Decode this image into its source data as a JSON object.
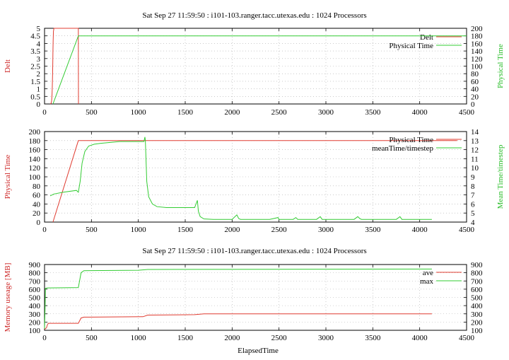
{
  "chart_data": [
    {
      "type": "line",
      "title": "Sat Sep 27 11:59:50 : i101-103.ranger.tacc.utexas.edu : 1024 Processors",
      "xlabel": "",
      "ylabel": "Delt",
      "y2label": "Physical Time",
      "xlim": [
        0,
        4500
      ],
      "ylim": [
        0,
        5
      ],
      "y2lim": [
        0,
        200
      ],
      "xticks": [
        0,
        500,
        1000,
        1500,
        2000,
        2500,
        3000,
        3500,
        4000,
        4500
      ],
      "yticks": [
        0,
        0.5,
        1,
        1.5,
        2,
        2.5,
        3,
        3.5,
        4,
        4.5,
        5
      ],
      "y2ticks": [
        0,
        20,
        40,
        60,
        80,
        100,
        120,
        140,
        160,
        180,
        200
      ],
      "grid": true,
      "legend_position": "top-right",
      "series": [
        {
          "name": "Delt",
          "axis": "left",
          "color": "#e03c31",
          "x": [
            60,
            70,
            75,
            80,
            83,
            86,
            88,
            90,
            92,
            95,
            100,
            360,
            361,
            362
          ],
          "y": [
            0.0,
            0.05,
            0.2,
            0.6,
            1.2,
            2.0,
            2.8,
            3.5,
            4.2,
            4.8,
            5.0,
            5.0,
            2.0,
            0.0
          ]
        },
        {
          "name": "Physical Time",
          "axis": "right",
          "color": "#33cc33",
          "x": [
            90,
            360,
            4500
          ],
          "y": [
            0,
            180,
            180
          ]
        }
      ]
    },
    {
      "type": "line",
      "title": "",
      "xlabel": "",
      "ylabel": "Physical Time",
      "y2label": "Mean Time/timestep",
      "xlim": [
        0,
        4500
      ],
      "ylim": [
        0,
        200
      ],
      "y2lim": [
        4,
        14
      ],
      "xticks": [
        0,
        500,
        1000,
        1500,
        2000,
        2500,
        3000,
        3500,
        4000,
        4500
      ],
      "yticks": [
        0,
        20,
        40,
        60,
        80,
        100,
        120,
        140,
        160,
        180,
        200
      ],
      "y2ticks": [
        4,
        5,
        6,
        7,
        8,
        9,
        10,
        11,
        12,
        13,
        14
      ],
      "grid": true,
      "legend_position": "top-right",
      "series": [
        {
          "name": "Physical Time",
          "axis": "left",
          "color": "#e03c31",
          "x": [
            90,
            360,
            4400
          ],
          "y": [
            0,
            180,
            180
          ]
        },
        {
          "name": "meanTime/timestep",
          "axis": "right",
          "color": "#33cc33",
          "x": [
            60,
            100,
            200,
            340,
            360,
            380,
            400,
            430,
            470,
            530,
            600,
            700,
            800,
            900,
            1000,
            1060,
            1070,
            1075,
            1080,
            1090,
            1110,
            1150,
            1200,
            1300,
            1400,
            1500,
            1600,
            1630,
            1640,
            1660,
            1700,
            1800,
            2000,
            2050,
            2070,
            2090,
            2200,
            2400,
            2490,
            2500,
            2520,
            2650,
            2680,
            2700,
            2900,
            2940,
            2960,
            3100,
            3300,
            3340,
            3360,
            3380,
            3500,
            3750,
            3790,
            3810,
            4000,
            4130
          ],
          "y": [
            6.9,
            7.1,
            7.3,
            7.5,
            7.3,
            8.5,
            10.5,
            11.8,
            12.4,
            12.6,
            12.7,
            12.8,
            12.9,
            12.9,
            12.9,
            12.9,
            13.4,
            13.0,
            11.5,
            8.5,
            6.8,
            6.0,
            5.7,
            5.6,
            5.6,
            5.6,
            5.6,
            6.4,
            5.2,
            4.6,
            4.35,
            4.3,
            4.3,
            4.8,
            4.4,
            4.3,
            4.3,
            4.3,
            4.5,
            4.3,
            4.3,
            4.3,
            4.5,
            4.3,
            4.3,
            4.6,
            4.3,
            4.3,
            4.3,
            4.6,
            4.4,
            4.3,
            4.3,
            4.3,
            4.6,
            4.3,
            4.3,
            4.3
          ]
        }
      ]
    },
    {
      "type": "line",
      "title": "Sat Sep 27 11:59:50 : i101-103.ranger.tacc.utexas.edu : 1024 Processors",
      "xlabel": "ElapsedTime",
      "ylabel": "Memory useage [MB]",
      "y2label": "",
      "xlim": [
        0,
        4500
      ],
      "ylim": [
        100,
        900
      ],
      "y2lim": [
        100,
        900
      ],
      "xticks": [
        0,
        500,
        1000,
        1500,
        2000,
        2500,
        3000,
        3500,
        4000,
        4500
      ],
      "yticks": [
        100,
        200,
        300,
        400,
        500,
        600,
        700,
        800,
        900
      ],
      "y2ticks": [
        100,
        200,
        300,
        400,
        500,
        600,
        700,
        800,
        900
      ],
      "grid": true,
      "legend_position": "top-right",
      "series": [
        {
          "name": "ave",
          "axis": "left",
          "color": "#e03c31",
          "x": [
            0,
            20,
            30,
            40,
            360,
            390,
            420,
            1050,
            1100,
            1600,
            1700,
            4130
          ],
          "y": [
            110,
            130,
            165,
            185,
            185,
            250,
            260,
            265,
            285,
            290,
            300,
            300
          ]
        },
        {
          "name": "max",
          "axis": "left",
          "color": "#33cc33",
          "x": [
            0,
            5,
            10,
            30,
            360,
            390,
            420,
            1000,
            1100,
            4130
          ],
          "y": [
            120,
            350,
            610,
            615,
            620,
            800,
            825,
            830,
            840,
            845
          ]
        }
      ]
    }
  ]
}
